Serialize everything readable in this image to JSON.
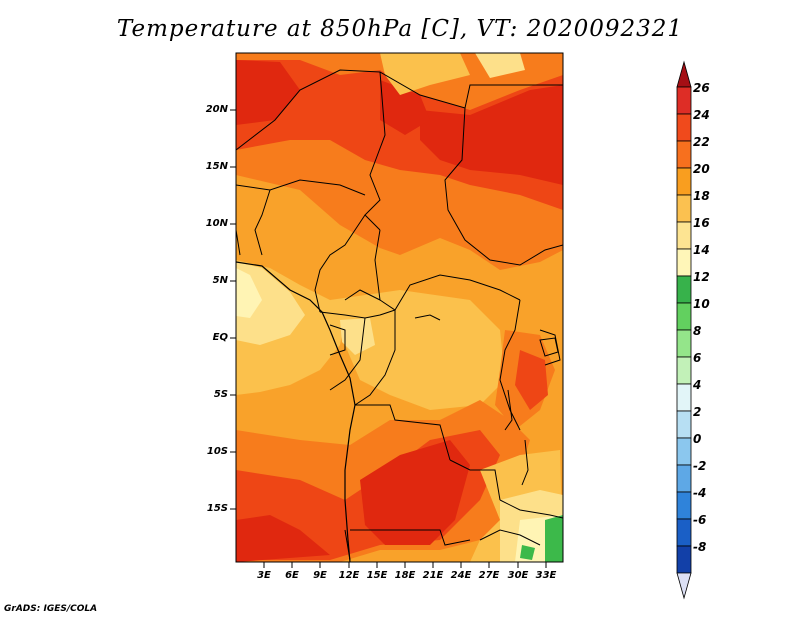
{
  "title": "Temperature at 850hPa [C], VT: 2020092321",
  "credit": "GrADS: IGES/COLA",
  "map": {
    "region": "Central Africa",
    "lat_ticks": [
      "20N",
      "15N",
      "10N",
      "5N",
      "EQ",
      "5S",
      "10S",
      "15S"
    ],
    "lon_ticks": [
      "3E",
      "6E",
      "9E",
      "12E",
      "15E",
      "18E",
      "21E",
      "24E",
      "27E",
      "30E",
      "33E"
    ]
  },
  "colorbar": {
    "labels": [
      "26",
      "24",
      "22",
      "20",
      "18",
      "16",
      "14",
      "12",
      "10",
      "8",
      "6",
      "4",
      "2",
      "0",
      "-2",
      "-4",
      "-6",
      "-8"
    ],
    "colors": [
      "#a50f15",
      "#de2d26",
      "#f04a1c",
      "#f7701e",
      "#f99e1f",
      "#fbc150",
      "#fde492",
      "#fff6b8",
      "#37b24b",
      "#62d05f",
      "#94e58a",
      "#c2f1b8",
      "#e2f5f8",
      "#b7dff3",
      "#8bc7ee",
      "#5ea8e6",
      "#2f83da",
      "#1a5fc6",
      "#1240a8",
      "#0b1a86"
    ]
  },
  "field_colors": {
    "c26": "#e0280f",
    "c24": "#ee4615",
    "c22": "#f77c1c",
    "c20": "#f9a22a",
    "c18": "#fbc14c",
    "c16": "#fde08a",
    "c14": "#fff4b4",
    "c12": "#3cb94a"
  }
}
